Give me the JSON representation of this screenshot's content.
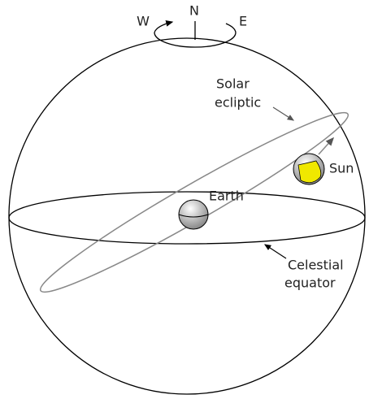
{
  "compass": {
    "west": "W",
    "north": "N",
    "east": "E"
  },
  "labels": {
    "solar_ecliptic": [
      "Solar",
      "ecliptic"
    ],
    "sun": "Sun",
    "earth": "Earth",
    "celestial_equator": [
      "Celestial",
      "equator"
    ]
  }
}
